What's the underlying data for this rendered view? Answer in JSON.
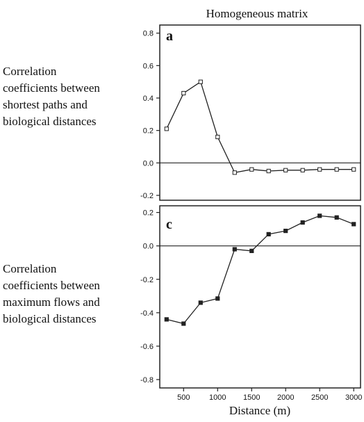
{
  "figure_title": "Homogeneous matrix",
  "chart_data": [
    {
      "type": "line",
      "panel_label": "a",
      "ylabel": "Correlation coefficients between shortest paths and biological distances",
      "ylabel_lines": [
        "Correlation",
        "coefficients between",
        "shortest paths and",
        "biological distances"
      ],
      "x": [
        250,
        500,
        750,
        1000,
        1250,
        1500,
        1750,
        2000,
        2250,
        2500,
        2750,
        3000
      ],
      "series": [
        {
          "marker": "open-square",
          "values": [
            0.21,
            0.43,
            0.5,
            0.16,
            -0.06,
            -0.04,
            -0.05,
            -0.045,
            -0.045,
            -0.04,
            -0.04,
            -0.04
          ]
        }
      ],
      "ylim": [
        -0.23,
        0.85
      ],
      "yticks": [
        0.8,
        0.6,
        0.4,
        0.2,
        0.0,
        -0.2
      ],
      "ytick_labels": [
        "0.8",
        "0.6",
        "0.4",
        "0.2",
        "0.0",
        "-0.2"
      ],
      "reference_line": 0,
      "grid": false
    },
    {
      "type": "line",
      "panel_label": "c",
      "ylabel": "Correlation coefficients between maximum flows and biological distances",
      "ylabel_lines": [
        "Correlation",
        "coefficients between",
        "maximum flows and",
        "biological distances"
      ],
      "xlabel": "Distance (m)",
      "x": [
        250,
        500,
        750,
        1000,
        1250,
        1500,
        1750,
        2000,
        2250,
        2500,
        2750,
        3000
      ],
      "xticks": [
        500,
        1000,
        1500,
        2000,
        2500,
        3000
      ],
      "xtick_labels": [
        "500",
        "1000",
        "1500",
        "2000",
        "2500",
        "3000"
      ],
      "xlim": [
        150,
        3100
      ],
      "series": [
        {
          "marker": "filled-square",
          "values": [
            -0.44,
            -0.465,
            -0.34,
            -0.315,
            -0.02,
            -0.03,
            0.07,
            0.09,
            0.14,
            0.18,
            0.17,
            0.13
          ]
        }
      ],
      "ylim": [
        -0.85,
        0.24
      ],
      "yticks": [
        0.2,
        0.0,
        -0.2,
        -0.4,
        -0.6,
        -0.8
      ],
      "ytick_labels": [
        "0.2",
        "0.0",
        "-0.2",
        "-0.4",
        "-0.6",
        "-0.8"
      ],
      "reference_line": 0,
      "grid": false
    }
  ]
}
